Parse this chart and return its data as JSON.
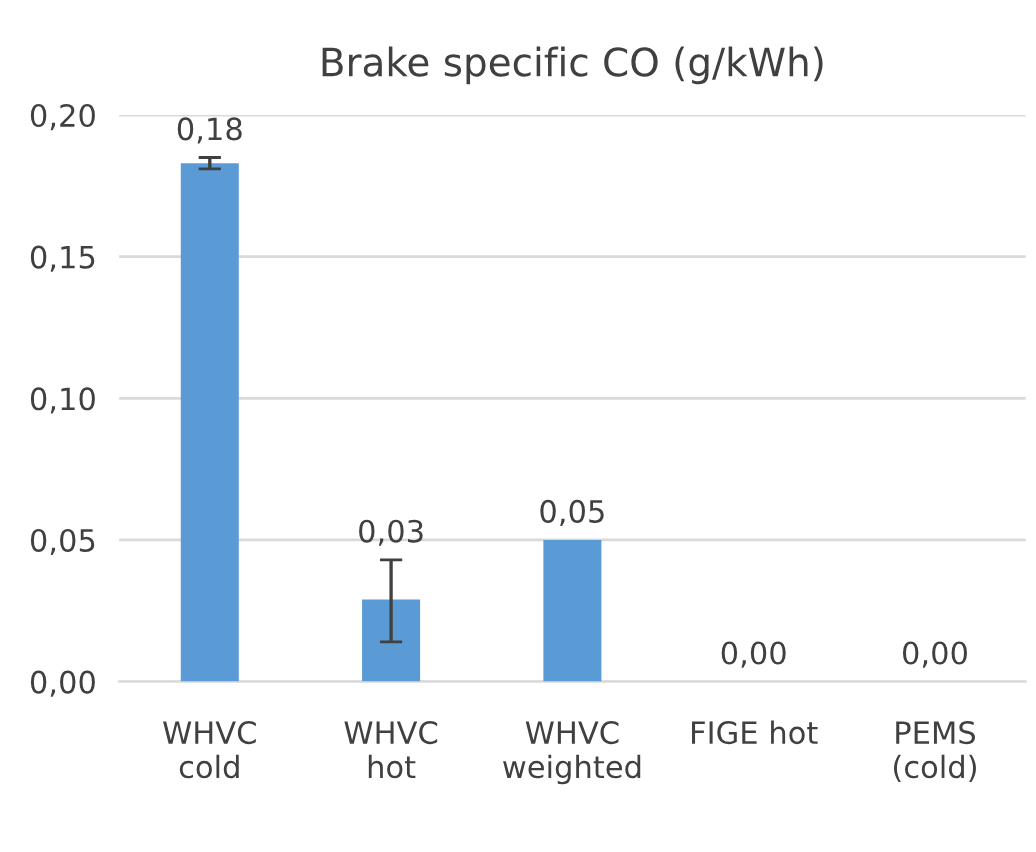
{
  "chart_data": {
    "type": "bar",
    "title": "Brake specific CO (g/kWh)",
    "categories": [
      "WHVC\ncold",
      "WHVC\nhot",
      "WHVC\nweighted",
      "FIGE hot",
      "PEMS\n(cold)"
    ],
    "values": [
      0.183,
      0.029,
      0.05,
      0.0,
      0.0
    ],
    "errors": [
      [
        0.181,
        0.185
      ],
      [
        0.014,
        0.043
      ],
      null,
      null,
      null
    ],
    "value_labels": [
      "0,18",
      "0,03",
      "0,05",
      "0,00",
      "0,00"
    ],
    "color": "#5b9bd5",
    "ylim": [
      0,
      0.2
    ],
    "yticks": [
      {
        "value": 0,
        "label": "0,00"
      },
      {
        "value": 0.05,
        "label": "0,05"
      },
      {
        "value": 0.1,
        "label": "0,10"
      },
      {
        "value": 0.15,
        "label": "0,15"
      },
      {
        "value": 0.2,
        "label": "0,20"
      }
    ],
    "grid": "y",
    "legend": false
  }
}
